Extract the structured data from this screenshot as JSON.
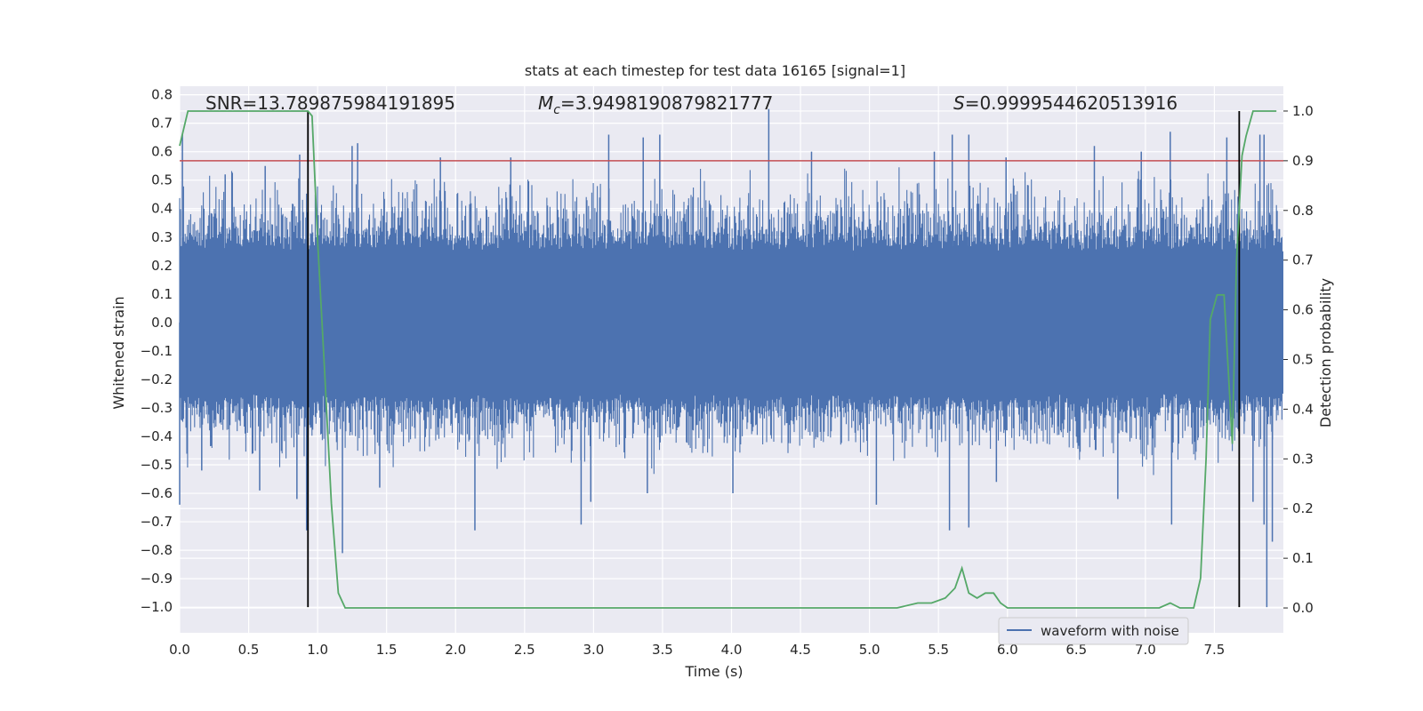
{
  "chart_data": {
    "type": "line",
    "title": "stats at each timestep for test data 16165 [signal=1]",
    "xlabel": "Time (s)",
    "ylabel": "Whitened strain",
    "y2label": "Detection probability",
    "xlim": [
      0.0,
      8.0
    ],
    "ylim": [
      -1.09,
      0.83
    ],
    "y2lim": [
      -0.05,
      1.05
    ],
    "xticks": [
      "0.0",
      "0.5",
      "1.0",
      "1.5",
      "2.0",
      "2.5",
      "3.0",
      "3.5",
      "4.0",
      "4.5",
      "5.0",
      "5.5",
      "6.0",
      "6.5",
      "7.0",
      "7.5"
    ],
    "yticks": [
      "0.8",
      "0.7",
      "0.6",
      "0.5",
      "0.4",
      "0.3",
      "0.2",
      "0.1",
      "0.0",
      "−0.1",
      "−0.2",
      "−0.3",
      "−0.4",
      "−0.5",
      "−0.6",
      "−0.7",
      "−0.8",
      "−0.9",
      "−1.0"
    ],
    "y2ticks": [
      "1.0",
      "0.9",
      "0.8",
      "0.7",
      "0.6",
      "0.5",
      "0.4",
      "0.3",
      "0.2",
      "0.1",
      "0.0"
    ],
    "grid": true,
    "legend_placement": "lower-right",
    "annotations": {
      "snr": "SNR=13.789875984191895",
      "mc_symbol": "M",
      "mc_sub": "c",
      "mc_value": "=3.9498190879821777",
      "s_symbol": "S",
      "s_value": "=0.9999544620513916"
    },
    "series": [
      {
        "name": "waveform with noise",
        "axis": "left",
        "color": "#4c72b0",
        "description_envelope": {
          "upper_typical": 0.45,
          "lower_typical": -0.4,
          "core": 0.25
        },
        "spikes": [
          [
            0.02,
            0.66
          ],
          [
            0.33,
            0.52
          ],
          [
            0.62,
            0.55
          ],
          [
            0.87,
            0.59
          ],
          [
            1.25,
            0.62
          ],
          [
            1.29,
            0.63
          ],
          [
            1.89,
            0.58
          ],
          [
            2.4,
            0.58
          ],
          [
            3.11,
            0.66
          ],
          [
            3.36,
            0.65
          ],
          [
            3.48,
            0.66
          ],
          [
            4.27,
            0.75
          ],
          [
            4.58,
            0.6
          ],
          [
            5.47,
            0.6
          ],
          [
            5.6,
            0.66
          ],
          [
            5.72,
            0.66
          ],
          [
            5.99,
            0.58
          ],
          [
            6.63,
            0.62
          ],
          [
            6.97,
            0.6
          ],
          [
            7.18,
            0.67
          ],
          [
            7.59,
            0.65
          ],
          [
            7.83,
            0.66
          ],
          [
            7.86,
            0.66
          ],
          [
            0.0,
            -0.64
          ],
          [
            0.16,
            -0.52
          ],
          [
            0.58,
            -0.59
          ],
          [
            0.85,
            -0.62
          ],
          [
            0.92,
            -0.73
          ],
          [
            1.18,
            -0.81
          ],
          [
            1.45,
            -0.58
          ],
          [
            2.14,
            -0.73
          ],
          [
            2.91,
            -0.71
          ],
          [
            2.98,
            -0.63
          ],
          [
            3.39,
            -0.6
          ],
          [
            4.01,
            -0.6
          ],
          [
            5.05,
            -0.64
          ],
          [
            5.58,
            -0.73
          ],
          [
            5.72,
            -0.72
          ],
          [
            5.92,
            -0.56
          ],
          [
            6.8,
            -0.62
          ],
          [
            7.19,
            -0.71
          ],
          [
            7.78,
            -0.63
          ],
          [
            7.86,
            -0.71
          ],
          [
            7.88,
            -1.0
          ],
          [
            7.92,
            -0.77
          ]
        ]
      },
      {
        "name": "detection probability",
        "axis": "right",
        "color": "#55a868",
        "x": [
          0.0,
          0.06,
          0.1,
          0.3,
          0.5,
          0.7,
          0.88,
          0.93,
          0.96,
          1.0,
          1.05,
          1.1,
          1.15,
          1.2,
          1.3,
          1.5,
          1.8,
          2.2,
          2.6,
          3.0,
          3.4,
          3.6,
          3.8,
          4.2,
          4.6,
          5.0,
          5.2,
          5.35,
          5.45,
          5.55,
          5.62,
          5.67,
          5.72,
          5.78,
          5.84,
          5.9,
          5.95,
          6.0,
          6.1,
          6.3,
          6.5,
          6.7,
          6.9,
          7.0,
          7.1,
          7.18,
          7.25,
          7.35,
          7.4,
          7.44,
          7.47,
          7.52,
          7.57,
          7.6,
          7.63,
          7.66,
          7.7,
          7.73,
          7.78,
          7.83,
          7.87,
          7.95
        ],
        "y": [
          0.93,
          1.0,
          1.0,
          1.0,
          1.0,
          1.0,
          1.0,
          1.0,
          0.99,
          0.74,
          0.48,
          0.21,
          0.03,
          0.0,
          0.0,
          0.0,
          0.0,
          0.0,
          0.0,
          0.0,
          0.0,
          0.0,
          0.0,
          0.0,
          0.0,
          0.0,
          0.0,
          0.01,
          0.01,
          0.02,
          0.04,
          0.08,
          0.03,
          0.02,
          0.03,
          0.03,
          0.01,
          0.0,
          0.0,
          0.0,
          0.0,
          0.0,
          0.0,
          0.0,
          0.0,
          0.01,
          0.0,
          0.0,
          0.06,
          0.3,
          0.58,
          0.63,
          0.63,
          0.48,
          0.33,
          0.7,
          0.91,
          0.95,
          1.0,
          1.0,
          1.0,
          1.0
        ]
      }
    ],
    "threshold": {
      "axis": "right",
      "value": 0.9,
      "color": "#c44e52"
    },
    "vlines": {
      "x": [
        0.93,
        7.68
      ],
      "ymin": -1.0,
      "ymax_right": 1.0,
      "color": "#000000"
    },
    "background": "#eaeaf2",
    "gridcolor": "#ffffff"
  }
}
